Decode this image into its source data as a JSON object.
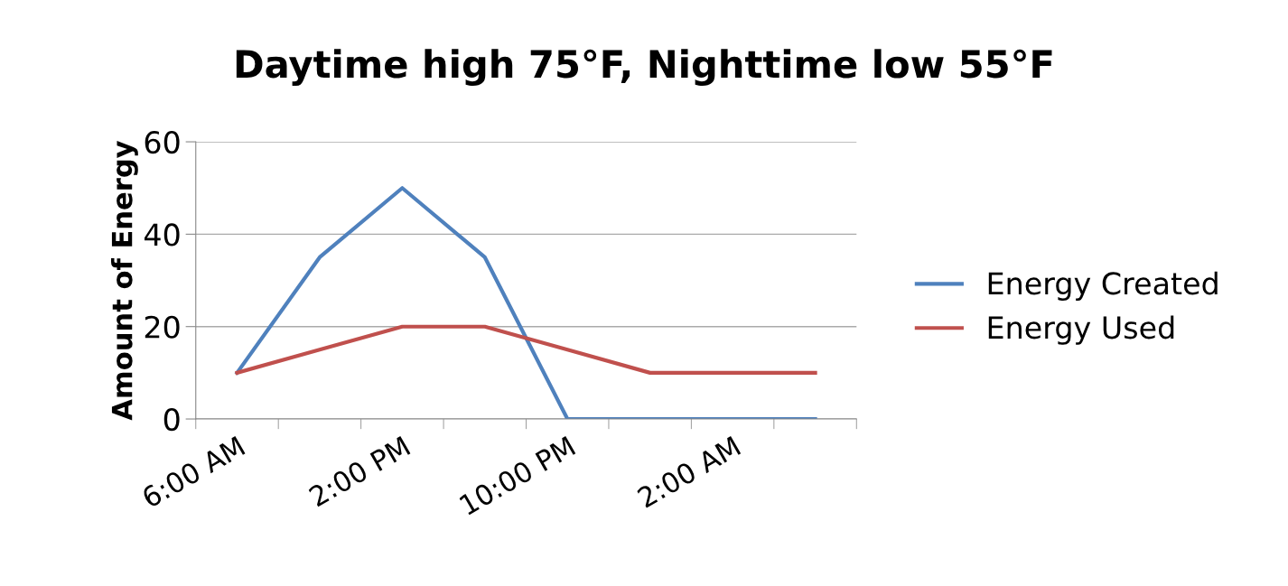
{
  "chart_data": {
    "type": "line",
    "title": "Daytime high 75°F, Nighttime low 55°F",
    "ylabel": "Amount of Energy",
    "categories": [
      "6:00 AM",
      null,
      "2:00 PM",
      null,
      "10:00 PM",
      null,
      "2:00 AM",
      null
    ],
    "series": [
      {
        "name": "Energy Created",
        "color": "#4f81bd",
        "values": [
          10,
          35,
          50,
          35,
          0,
          0,
          0,
          0
        ]
      },
      {
        "name": "Energy Used",
        "color": "#c0504d",
        "values": [
          10,
          15,
          20,
          20,
          15,
          10,
          10,
          10
        ]
      }
    ],
    "ylim": [
      0,
      60
    ],
    "yticks": [
      0,
      20,
      40,
      60
    ],
    "grid": "y",
    "legend": "right",
    "marker": "none",
    "line_style": "solid"
  }
}
